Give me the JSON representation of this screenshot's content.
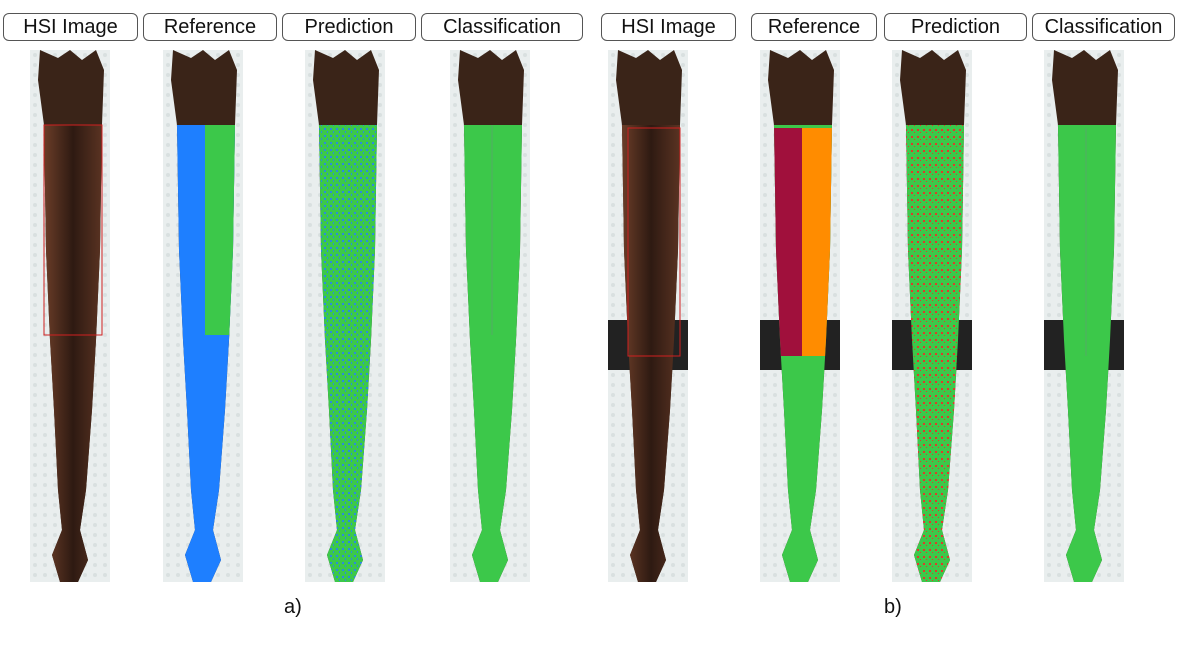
{
  "panels": [
    {
      "label": "a)",
      "columns": [
        "HSI Image",
        "Reference",
        "Prediction",
        "Classification"
      ]
    },
    {
      "label": "b)",
      "columns": [
        "HSI Image",
        "Reference",
        "Prediction",
        "Classification"
      ]
    }
  ]
}
